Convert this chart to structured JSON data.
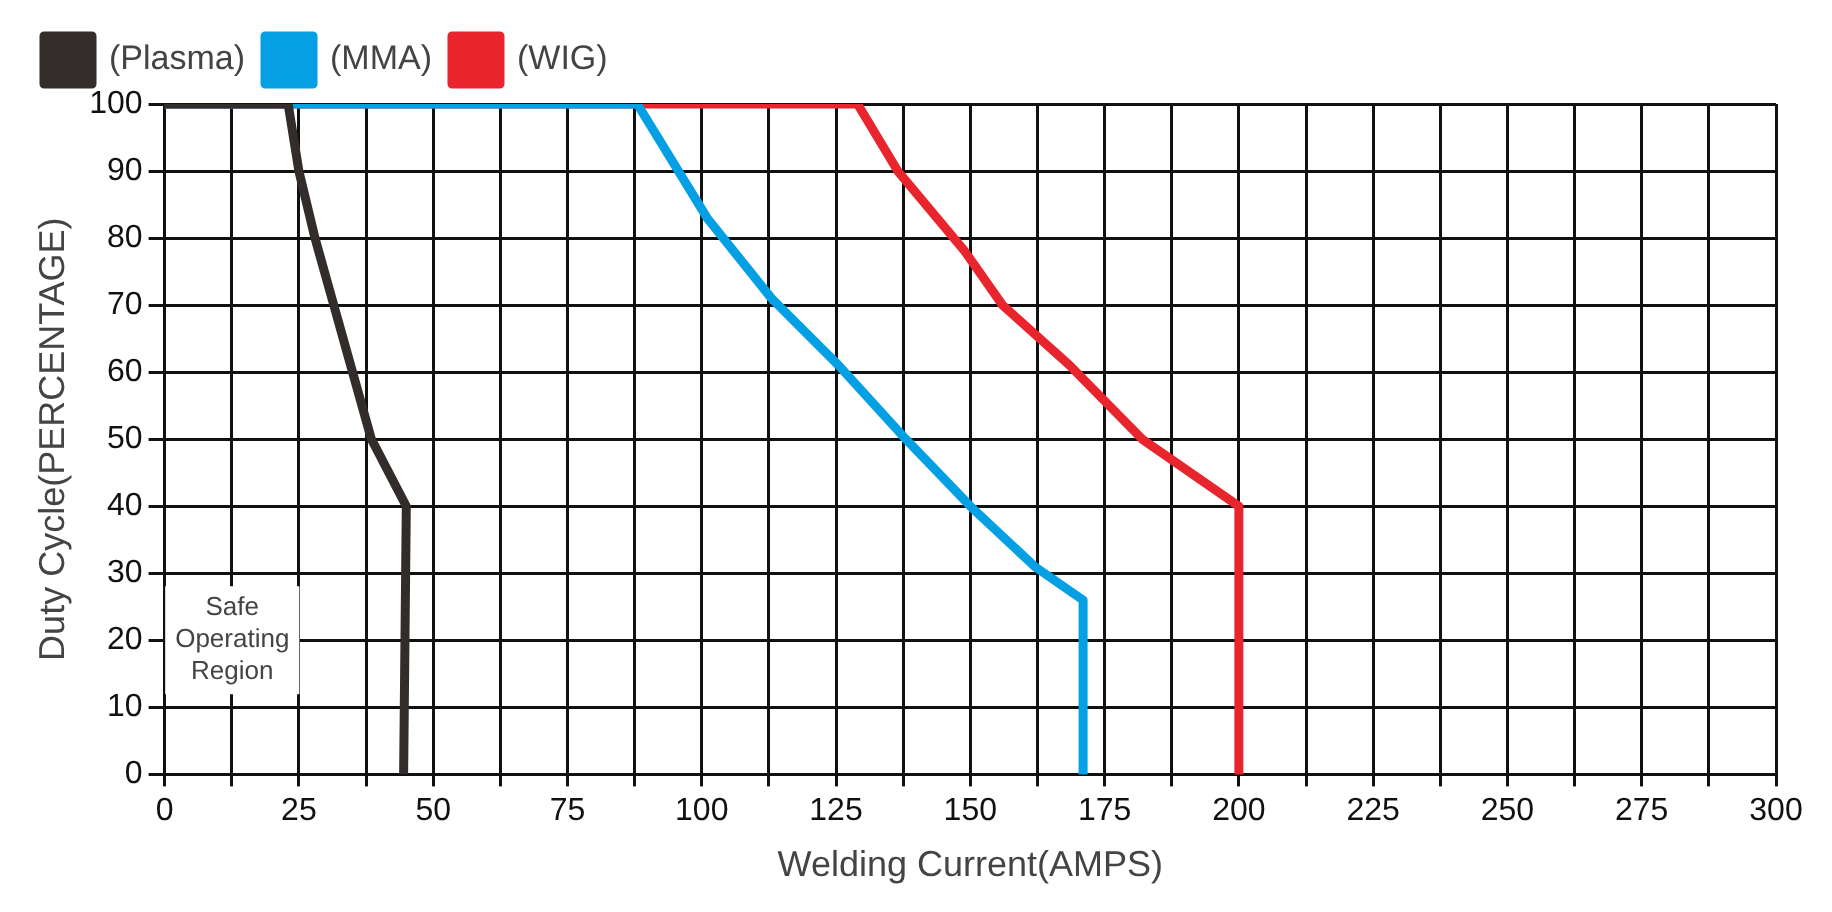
{
  "chart_data": {
    "type": "line",
    "xlabel": "Welding Current(AMPS)",
    "ylabel": "Duty Cycle(PERCENTAGE)",
    "series": [
      {
        "name": "(Plasma)",
        "color": "#322d2b",
        "x": [
          0,
          23,
          25,
          28,
          31.5,
          35,
          38.5,
          45,
          44.5
        ],
        "values": [
          100,
          100,
          90,
          80,
          70,
          60,
          50,
          40,
          0
        ]
      },
      {
        "name": "(MMA)",
        "color": "#05a0e4",
        "x": [
          0,
          88,
          101,
          113,
          125.5,
          138,
          150,
          162,
          171,
          171
        ],
        "values": [
          100,
          100,
          83,
          71,
          61,
          50,
          40,
          31,
          26,
          0
        ]
      },
      {
        "name": "(WIG)",
        "color": "#e8242c",
        "x": [
          0,
          129,
          136.5,
          149,
          156,
          168.5,
          182,
          200,
          200
        ],
        "values": [
          100,
          100,
          90,
          78,
          70,
          61,
          50,
          40,
          0
        ]
      }
    ],
    "xlim": [
      0,
      300
    ],
    "xticks": [
      0,
      {
        "value": 12.5,
        "label": null
      },
      25,
      {
        "value": 37.5,
        "label": null
      },
      50,
      {
        "value": 62.5,
        "label": null
      },
      75,
      {
        "value": 87.5,
        "label": null
      },
      100,
      {
        "value": 112.5,
        "label": null
      },
      125,
      {
        "value": 137.5,
        "label": null
      },
      150,
      {
        "value": 162.5,
        "label": null
      },
      175,
      {
        "value": 187.5,
        "label": null
      },
      200,
      {
        "value": 212.5,
        "label": null
      },
      225,
      {
        "value": 237.5,
        "label": null
      },
      250,
      {
        "value": 262.5,
        "label": null
      },
      275,
      {
        "value": 287.5,
        "label": null
      },
      300
    ],
    "ylim": [
      0,
      100
    ],
    "yticks": [
      0,
      10,
      20,
      30,
      40,
      50,
      60,
      70,
      80,
      90,
      100
    ],
    "grid": true,
    "legend": "top left",
    "marker": "none",
    "line_style": "solid",
    "annotations": [
      "Safe\nOperating\nRegion"
    ]
  }
}
